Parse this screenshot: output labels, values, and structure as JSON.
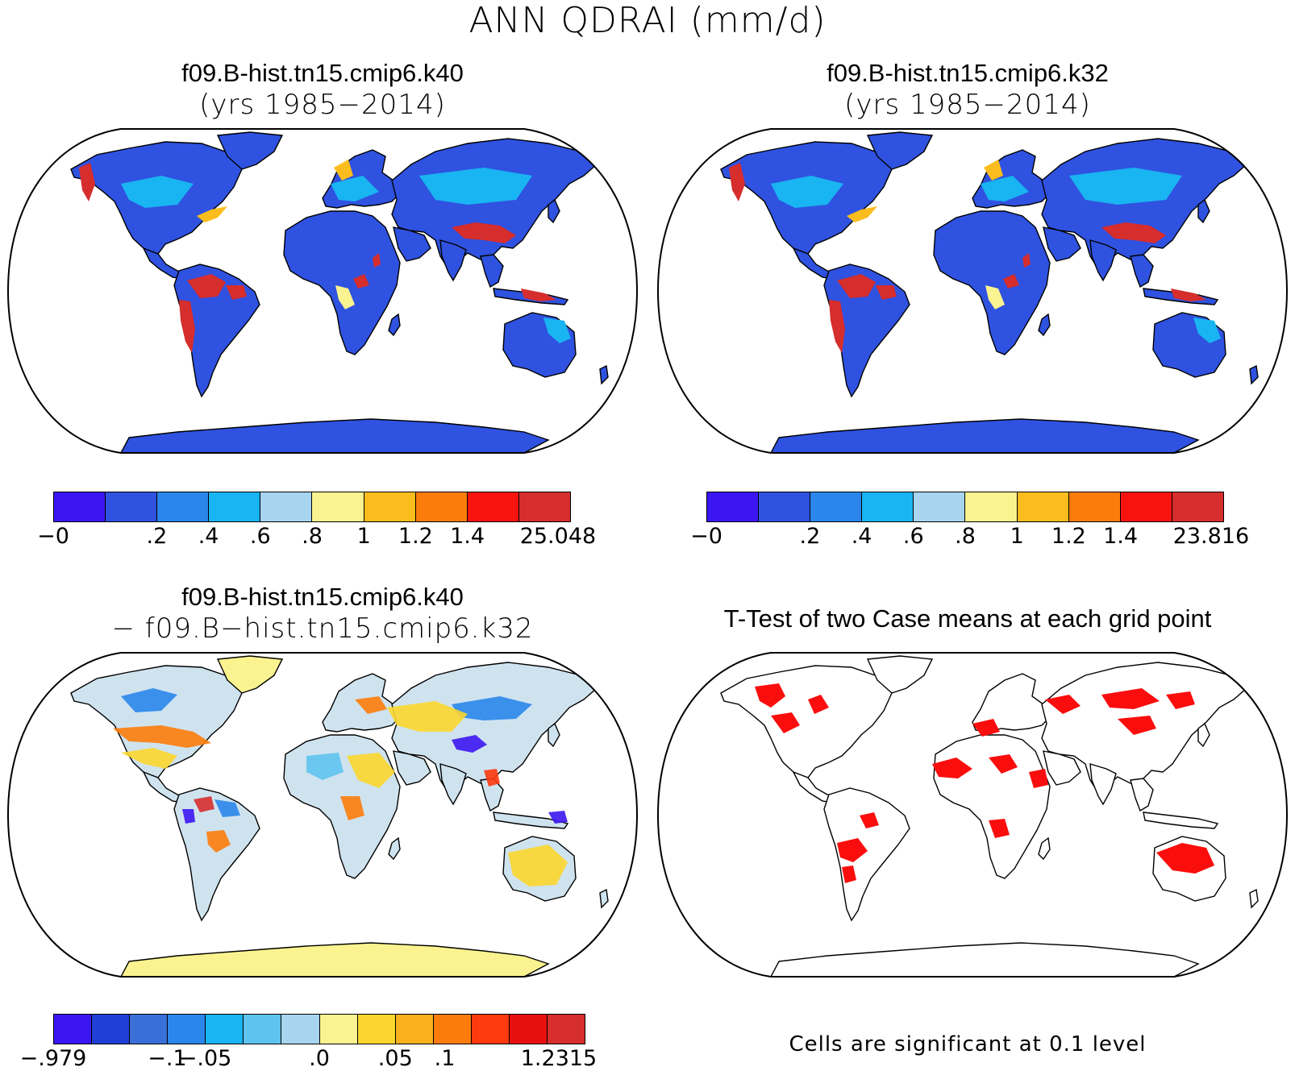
{
  "title": "ANN QDRAI (mm/d)",
  "panels": {
    "top_left": {
      "title": "f09.B-hist.tn15.cmip6.k40",
      "subtitle": "(yrs 1985−2014)",
      "colorbar": {
        "colors": [
          "#3c16f2",
          "#2f52e0",
          "#2a86eb",
          "#19b4f2",
          "#a7d5f0",
          "#fbf38f",
          "#fbbd1d",
          "#fc7c0b",
          "#f9130e",
          "#d62d2d"
        ],
        "ticks": [
          "−0",
          ".2",
          ".4",
          ".6",
          ".8",
          "1",
          "1.2",
          "1.4",
          "25.048"
        ]
      }
    },
    "top_right": {
      "title": "f09.B-hist.tn15.cmip6.k32",
      "subtitle": "(yrs 1985−2014)",
      "colorbar": {
        "colors": [
          "#3c16f2",
          "#2f52e0",
          "#2a86eb",
          "#19b4f2",
          "#a7d5f0",
          "#fbf38f",
          "#fbbd1d",
          "#fc7c0b",
          "#f9130e",
          "#d62d2d"
        ],
        "ticks": [
          "−0",
          ".2",
          ".4",
          ".6",
          ".8",
          "1",
          "1.2",
          "1.4",
          "23.816"
        ]
      }
    },
    "bottom_left": {
      "title": "f09.B-hist.tn15.cmip6.k40",
      "subtitle": "− f09.B−hist.tn15.cmip6.k32",
      "colorbar": {
        "colors": [
          "#3c16f2",
          "#1f3fd6",
          "#3a6fd8",
          "#2a86eb",
          "#19b4f2",
          "#5fc3f0",
          "#a7d5f0",
          "#fbf38f",
          "#fbd62e",
          "#fbb01d",
          "#fc7c0b",
          "#fc3a0e",
          "#e8100e",
          "#d62d2d"
        ],
        "ticks": [
          "−.979",
          "−.1",
          "−.05",
          ".0",
          ".05",
          ".1",
          "1.2315"
        ]
      }
    },
    "bottom_right": {
      "title": "T-Test of two Case means at each grid point",
      "note": "Cells are significant at 0.1 level"
    }
  }
}
